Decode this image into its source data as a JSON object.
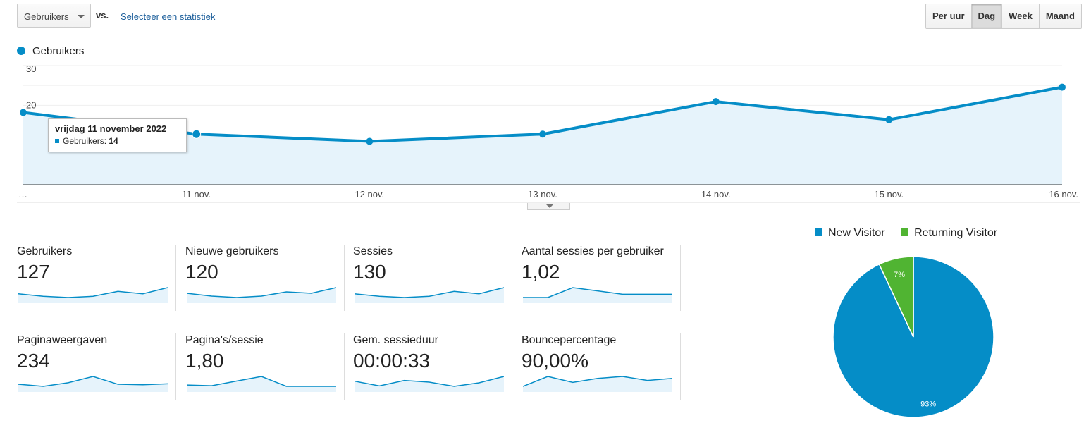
{
  "controls": {
    "metric_select": "Gebruikers",
    "vs_label": "vs.",
    "select_stat_link": "Selecteer een statistiek",
    "periods": [
      {
        "label": "Per uur",
        "active": false
      },
      {
        "label": "Dag",
        "active": true
      },
      {
        "label": "Week",
        "active": false
      },
      {
        "label": "Maand",
        "active": false
      }
    ]
  },
  "legend": {
    "label": "Gebruikers"
  },
  "tooltip": {
    "date": "vrijdag 11 november 2022",
    "metric": "Gebruikers:",
    "value": "14"
  },
  "chart_data": [
    {
      "type": "area",
      "x": [
        "…",
        "11 nov.",
        "12 nov.",
        "13 nov.",
        "14 nov.",
        "15 nov.",
        "16 nov."
      ],
      "series": [
        {
          "name": "Gebruikers",
          "values": [
            20,
            14,
            12,
            14,
            23,
            18,
            27
          ]
        }
      ],
      "y_ticks": [
        "30",
        "20",
        "10"
      ],
      "ylim": [
        0,
        30
      ],
      "color": "#058dc7",
      "fill": "#e6f3fb"
    },
    {
      "type": "pie",
      "labels": [
        "New Visitor",
        "Returning Visitor"
      ],
      "values": [
        93,
        7
      ],
      "value_labels": [
        "93%",
        "7%"
      ],
      "colors": [
        "#058dc7",
        "#50b432"
      ]
    }
  ],
  "scorecards": [
    {
      "name": "Gebruikers",
      "value": "127",
      "spark": [
        14,
        12,
        11,
        12,
        16,
        14,
        19
      ]
    },
    {
      "name": "Nieuwe gebruikers",
      "value": "120",
      "spark": [
        14,
        12,
        11,
        12,
        15,
        14,
        18
      ]
    },
    {
      "name": "Sessies",
      "value": "130",
      "spark": [
        14,
        12,
        11,
        12,
        16,
        14,
        19
      ]
    },
    {
      "name": "Aantal sessies per gebruiker",
      "value": "1,02",
      "spark": [
        1.0,
        1.0,
        1.03,
        1.02,
        1.01,
        1.01,
        1.01
      ]
    },
    {
      "name": "Paginaweergaven",
      "value": "234",
      "spark": [
        30,
        26,
        33,
        45,
        30,
        29,
        31
      ]
    },
    {
      "name": "Pagina's/sessie",
      "value": "1,80",
      "spark": [
        1.6,
        1.55,
        1.9,
        2.25,
        1.5,
        1.5,
        1.5
      ]
    },
    {
      "name": "Gem. sessieduur",
      "value": "00:00:33",
      "spark": [
        32,
        12,
        35,
        28,
        10,
        25,
        52
      ]
    },
    {
      "name": "Bouncepercentage",
      "value": "90,00%",
      "spark": [
        86,
        91,
        88,
        90,
        91,
        89,
        90
      ]
    }
  ]
}
